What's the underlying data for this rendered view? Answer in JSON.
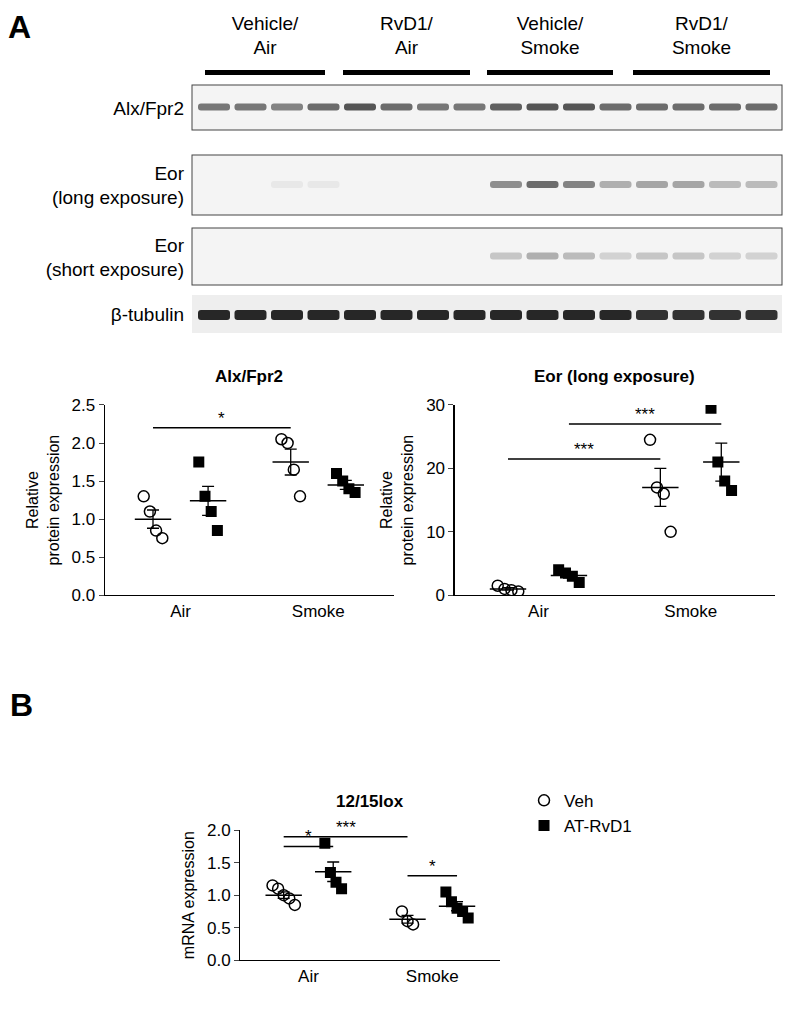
{
  "panel_labels": [
    "A",
    "B"
  ],
  "blot": {
    "groups": [
      [
        "Vehicle/",
        "Air"
      ],
      [
        "RvD1/",
        "Air"
      ],
      [
        "Vehicle/",
        "Smoke"
      ],
      [
        "RvD1/",
        "Smoke"
      ]
    ],
    "rows": [
      [
        "Alx/Fpr2"
      ],
      [
        "Eor",
        "(long exposure)"
      ],
      [
        "Eor",
        "(short exposure)"
      ],
      [
        "β-tubulin"
      ]
    ]
  },
  "chart_data": [
    {
      "type": "scatter",
      "title": "Alx/Fpr2",
      "ylabel": [
        "Relative",
        "protein expression"
      ],
      "categories": [
        "Air",
        "Smoke"
      ],
      "ylim": [
        0,
        2.5
      ],
      "yticks": [
        {
          "value": 0,
          "label": "0.0"
        },
        {
          "value": 0.5,
          "label": "0.5"
        },
        {
          "value": 1,
          "label": "1.0"
        },
        {
          "value": 1.5,
          "label": "1.5"
        },
        {
          "value": 2,
          "label": "2.0"
        },
        {
          "value": 2.5,
          "label": "2.5"
        }
      ],
      "grid": false,
      "series": [
        {
          "color": "#000000",
          "marker": "circle-open",
          "values": [
            [
              1.3,
              1.1,
              0.85,
              0.75
            ],
            [
              2.05,
              2.0,
              1.65,
              1.3
            ]
          ],
          "mean": [
            1.0,
            1.75
          ],
          "sem": [
            0.12,
            0.17
          ]
        },
        {
          "color": "#000000",
          "marker": "square",
          "values": [
            [
              1.75,
              1.3,
              1.1,
              0.85
            ],
            [
              1.6,
              1.5,
              1.4,
              1.35
            ]
          ],
          "mean": [
            1.24,
            1.45
          ],
          "sem": [
            0.19,
            0.06
          ]
        }
      ],
      "significance": [
        {
          "label": "*",
          "from": {
            "category": 0,
            "series": 0
          },
          "to": {
            "category": 1,
            "series": 0
          },
          "y": 2.2
        }
      ]
    },
    {
      "type": "scatter",
      "title": "Eor (long exposure)",
      "ylabel": [
        "Relative",
        "protein expression"
      ],
      "categories": [
        "Air",
        "Smoke"
      ],
      "ylim": [
        0,
        30
      ],
      "yticks": [
        0,
        10,
        20,
        30
      ],
      "grid": false,
      "series": [
        {
          "color": "#000000",
          "marker": "circle-open",
          "values": [
            [
              1.5,
              1.0,
              0.8,
              0.6
            ],
            [
              24.5,
              17,
              16,
              10
            ]
          ],
          "mean": [
            1.0,
            17
          ],
          "sem": [
            0.2,
            3
          ]
        },
        {
          "color": "#000000",
          "marker": "square",
          "values": [
            [
              4,
              3.5,
              3,
              2
            ],
            [
              29.5,
              21,
              18,
              16.5
            ]
          ],
          "mean": [
            3.1,
            21
          ],
          "sem": [
            0.4,
            3
          ]
        }
      ],
      "significance": [
        {
          "label": "***",
          "from": {
            "category": 0,
            "series": 0
          },
          "to": {
            "category": 1,
            "series": 0
          },
          "y": 21.5
        },
        {
          "label": "***",
          "from": {
            "category": 0,
            "series": 1
          },
          "to": {
            "category": 1,
            "series": 1
          },
          "y": 27
        }
      ]
    },
    {
      "type": "scatter",
      "title": "12/15lox",
      "ylabel": [
        "mRNA expression"
      ],
      "categories": [
        "Air",
        "Smoke"
      ],
      "ylim": [
        0,
        2.0
      ],
      "yticks": [
        {
          "value": 0,
          "label": "0.0"
        },
        {
          "value": 0.5,
          "label": "0.5"
        },
        {
          "value": 1,
          "label": "1.0"
        },
        {
          "value": 1.5,
          "label": "1.5"
        },
        {
          "value": 2,
          "label": "2.0"
        }
      ],
      "grid": false,
      "legend": "right",
      "series": [
        {
          "name": "Veh",
          "color": "#000000",
          "marker": "circle-open",
          "values": [
            [
              1.15,
              1.1,
              1.0,
              0.95,
              0.85
            ],
            [
              0.75,
              0.6,
              0.55
            ]
          ],
          "mean": [
            1.0,
            0.63
          ],
          "sem": [
            0.05,
            0.06
          ]
        },
        {
          "name": "AT-RvD1",
          "color": "#000000",
          "marker": "square",
          "values": [
            [
              1.8,
              1.35,
              1.2,
              1.1
            ],
            [
              1.05,
              0.9,
              0.8,
              0.75,
              0.65
            ]
          ],
          "mean": [
            1.36,
            0.83
          ],
          "sem": [
            0.15,
            0.07
          ]
        }
      ],
      "significance": [
        {
          "label": "*",
          "from": {
            "category": 0,
            "series": 0
          },
          "to": {
            "category": 0,
            "series": 1
          },
          "y": 1.75
        },
        {
          "label": "***",
          "from": {
            "category": 0,
            "series": 0
          },
          "to": {
            "category": 1,
            "series": 0
          },
          "y": 1.9
        },
        {
          "label": "*",
          "from": {
            "category": 1,
            "series": 0
          },
          "to": {
            "category": 1,
            "series": 1
          },
          "y": 1.3
        }
      ]
    }
  ]
}
